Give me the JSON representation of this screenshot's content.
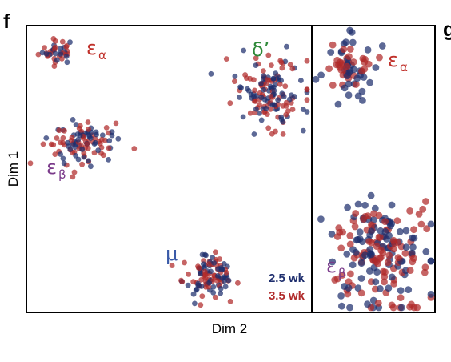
{
  "panel_labels": {
    "left": "f",
    "right": "g"
  },
  "chart_data": [
    {
      "type": "scatter",
      "xlabel": "Dim 2",
      "ylabel": "Dim 1",
      "grid": false,
      "xlim": [
        0,
        100
      ],
      "ylim": [
        0,
        100
      ],
      "legend": {
        "placement": "bottom-right",
        "entries": [
          {
            "label": "2.5 wk",
            "color": "#1f2f6e"
          },
          {
            "label": "3.5 wk",
            "color": "#b02a2a"
          }
        ]
      },
      "clusters": [
        {
          "label": "ε",
          "sub": "α",
          "label_color": "#c0302a",
          "center": [
            10,
            92
          ],
          "spread": [
            3.2,
            2.2
          ],
          "n": 40
        },
        {
          "label": "δ’",
          "sub": "",
          "label_color": "#2f8a3a",
          "center": [
            86,
            77
          ],
          "spread": [
            6,
            6
          ],
          "n": 150
        },
        {
          "label": "ε",
          "sub": "β",
          "label_color": "#7a3a8a",
          "center": [
            18,
            59
          ],
          "spread": [
            6,
            4.5
          ],
          "n": 110
        },
        {
          "label": "μ",
          "sub": "",
          "label_color": "#3a5aa8",
          "center": [
            64,
            12
          ],
          "spread": [
            4.5,
            3.5
          ],
          "n": 110
        }
      ]
    },
    {
      "type": "scatter",
      "xlim": [
        0,
        100
      ],
      "ylim": [
        0,
        100
      ],
      "grid": false,
      "clusters": [
        {
          "label": "ε",
          "sub": "α",
          "label_color": "#c0302a",
          "center": [
            27,
            87
          ],
          "spread": [
            12,
            6
          ],
          "n": 70
        },
        {
          "label": "ε",
          "sub": "β",
          "label_color": "#7a3a8a",
          "center": [
            55,
            20
          ],
          "spread": [
            22,
            10
          ],
          "n": 200
        }
      ]
    }
  ]
}
